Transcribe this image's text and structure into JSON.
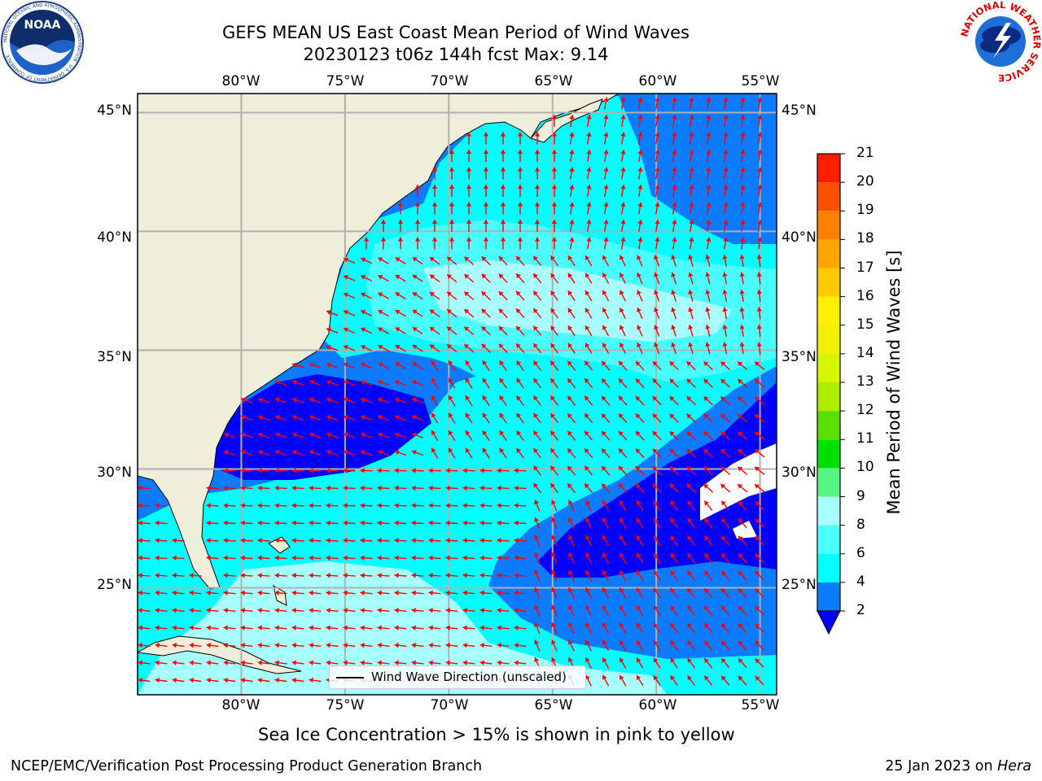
{
  "title": {
    "line1": "GEFS MEAN US East Coast Mean Period of Wind Waves",
    "line2": "20230123 t06z 144h fcst   Max: 9.14"
  },
  "map": {
    "lon_range": [
      -85,
      -54.2
    ],
    "lat_range": [
      20.5,
      45.8
    ],
    "lon_ticks": [
      "80°W",
      "75°W",
      "70°W",
      "65°W",
      "60°W",
      "55°W"
    ],
    "lat_ticks": [
      "45°N",
      "40°N",
      "35°N",
      "30°N",
      "25°N"
    ],
    "legend": "Wind Wave Direction (unscaled)",
    "land_color": "#efeedb",
    "arrow_color": "#ff0000",
    "gridline_color": "#b0b0b0"
  },
  "colorbar": {
    "label": "Mean Period of Wind Waves [s]",
    "ticks": [
      "21",
      "20",
      "19",
      "18",
      "17",
      "16",
      "15",
      "14",
      "13",
      "12",
      "11",
      "10",
      "9",
      "8",
      "6",
      "4",
      "2"
    ],
    "bins": [
      {
        "from": 2,
        "to": 4,
        "color": "#0b7bff"
      },
      {
        "from": 4,
        "to": 6,
        "color": "#00ffff"
      },
      {
        "from": 6,
        "to": 8,
        "color": "#4affff"
      },
      {
        "from": 8,
        "to": 9,
        "color": "#a7ffff"
      },
      {
        "from": 9,
        "to": 10,
        "color": "#58f580"
      },
      {
        "from": 10,
        "to": 11,
        "color": "#00e000"
      },
      {
        "from": 11,
        "to": 12,
        "color": "#5ae000"
      },
      {
        "from": 12,
        "to": 13,
        "color": "#b0ec00"
      },
      {
        "from": 13,
        "to": 14,
        "color": "#d7f500"
      },
      {
        "from": 14,
        "to": 15,
        "color": "#f0f000"
      },
      {
        "from": 15,
        "to": 16,
        "color": "#fff000"
      },
      {
        "from": 16,
        "to": 17,
        "color": "#ffc800"
      },
      {
        "from": 17,
        "to": 18,
        "color": "#ffa400"
      },
      {
        "from": 18,
        "to": 19,
        "color": "#ff8000"
      },
      {
        "from": 19,
        "to": 20,
        "color": "#ff5000"
      },
      {
        "from": 20,
        "to": 21,
        "color": "#ff1e00"
      }
    ],
    "under_color": "#0000ff"
  },
  "caption": "Sea Ice Concentration > 15% is shown in pink to yellow",
  "footer": {
    "left": "NCEP/EMC/Verification Post Processing Product Generation Branch",
    "right_prefix": "25 Jan 2023 on ",
    "right_host": "Hera"
  },
  "logos": {
    "noaa_text": "NOAA",
    "noaa_ring": "NATIONAL OCEANIC AND ATMOSPHERIC ADMINISTRATION · U.S. DEPARTMENT OF COMMERCE",
    "nws_ring": "NATIONAL WEATHER SERVICE"
  }
}
